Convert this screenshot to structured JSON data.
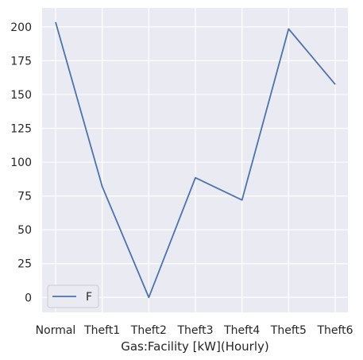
{
  "chart_data": {
    "type": "line",
    "title": "",
    "xlabel": "Gas:Facility [kW](Hourly)",
    "ylabel": "",
    "categories": [
      "Normal",
      "Theft1",
      "Theft2",
      "Theft3",
      "Theft4",
      "Theft5",
      "Theft6"
    ],
    "series": [
      {
        "name": "F",
        "values": [
          203.5,
          82,
          0,
          88.5,
          72,
          198.5,
          157.5
        ],
        "color": "#4c72b0"
      }
    ],
    "ylim": [
      -11,
      214
    ],
    "yticks": [
      0,
      25,
      50,
      75,
      100,
      125,
      150,
      175,
      200
    ],
    "grid": true,
    "legend_position": "lower-left",
    "background_color": "#eaeaf2",
    "grid_color": "#ffffff"
  }
}
